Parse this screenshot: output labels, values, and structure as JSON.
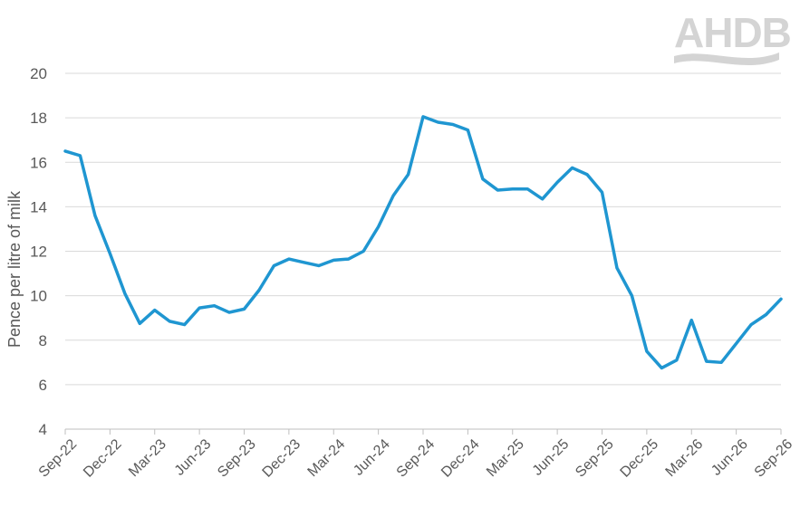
{
  "logo": {
    "text": "AHDB"
  },
  "chart_data": {
    "type": "line",
    "title": "",
    "xlabel": "",
    "ylabel": "Pence per litre of milk",
    "ylim": [
      4,
      20
    ],
    "yticks": [
      4,
      6,
      8,
      10,
      12,
      14,
      16,
      18,
      20
    ],
    "grid": true,
    "x_tick_labels": [
      "Sep-22",
      "Dec-22",
      "Mar-23",
      "Jun-23",
      "Sep-23",
      "Dec-23",
      "Mar-24",
      "Jun-24",
      "Sep-24",
      "Dec-24",
      "Mar-25",
      "Jun-25",
      "Sep-25",
      "Dec-25",
      "Mar-26",
      "Jun-26",
      "Sep-26"
    ],
    "x": [
      "Sep-22",
      "Oct-22",
      "Nov-22",
      "Dec-22",
      "Jan-23",
      "Feb-23",
      "Mar-23",
      "Apr-23",
      "May-23",
      "Jun-23",
      "Jul-23",
      "Aug-23",
      "Sep-23",
      "Oct-23",
      "Nov-23",
      "Dec-23",
      "Jan-24",
      "Feb-24",
      "Mar-24",
      "Apr-24",
      "May-24",
      "Jun-24",
      "Jul-24",
      "Aug-24",
      "Sep-24",
      "Oct-24",
      "Nov-24",
      "Dec-24",
      "Jan-25",
      "Feb-25",
      "Mar-25",
      "Apr-25",
      "May-25",
      "Jun-25",
      "Jul-25",
      "Aug-25",
      "Sep-25",
      "Oct-25",
      "Nov-25",
      "Dec-25",
      "Jan-26",
      "Feb-26",
      "Mar-26",
      "Apr-26",
      "May-26",
      "Jun-26",
      "Jul-26",
      "Aug-26",
      "Sep-26"
    ],
    "series": [
      {
        "color": "#1f96d1",
        "values": [
          16.5,
          16.3,
          13.6,
          11.9,
          10.1,
          8.75,
          9.35,
          8.85,
          8.7,
          9.45,
          9.55,
          9.25,
          9.4,
          10.25,
          11.35,
          11.65,
          11.5,
          11.35,
          11.6,
          11.65,
          12.0,
          13.1,
          14.5,
          15.45,
          18.05,
          17.8,
          17.7,
          17.45,
          15.25,
          14.75,
          14.8,
          14.8,
          14.35,
          15.1,
          15.75,
          15.45,
          14.65,
          11.25,
          10.0,
          7.5,
          6.75,
          7.1,
          8.9,
          7.05,
          7.0,
          7.85,
          8.7,
          9.15,
          9.85
        ]
      }
    ]
  }
}
